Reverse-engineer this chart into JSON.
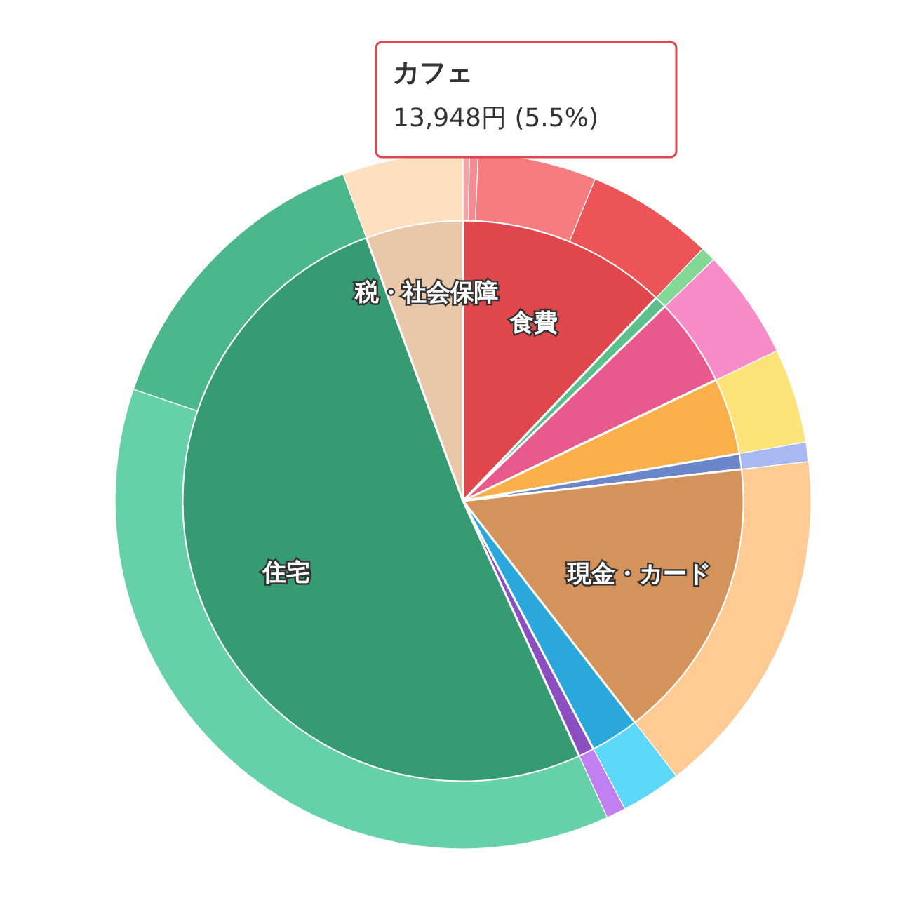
{
  "chart_data": [
    {
      "type": "pie",
      "categories": [
        "食費",
        null,
        null,
        null,
        null,
        "現金・カード",
        null,
        null,
        "住宅",
        "税・社会保障"
      ],
      "values": [
        12.1,
        0.7,
        5.1,
        4.4,
        0.9,
        16.3,
        2.8,
        0.9,
        51.2,
        5.6
      ],
      "colors": [
        "#e0474c",
        "#5cc08a",
        "#e85a8e",
        "#f9b04a",
        "#6a85c8",
        "#d4935a",
        "#2aa8dc",
        "#8c4fc0",
        "#369a72",
        "#e8c8a8"
      ]
    },
    {
      "type": "donut",
      "categories": [
        null,
        null,
        null,
        null,
        null,
        null,
        null,
        null,
        null,
        null,
        null,
        null,
        null,
        null
      ],
      "values": [
        0.3,
        0.4,
        5.5,
        5.9,
        0.7,
        5.1,
        4.4,
        0.9,
        16.3,
        2.8,
        0.9,
        37.0,
        14.2,
        5.6
      ],
      "colors": [
        "#f5a3ab",
        "#f58a90",
        "#f77c80",
        "#ec5458",
        "#84d896",
        "#f88cc8",
        "#fde47a",
        "#a8b8f0",
        "#fecb94",
        "#5ed8f8",
        "#c080f0",
        "#66d0aa",
        "#4db78c",
        "#fde0c0"
      ],
      "annotations": [
        "カフェ",
        "13,948円 (5.5%)"
      ]
    }
  ]
}
